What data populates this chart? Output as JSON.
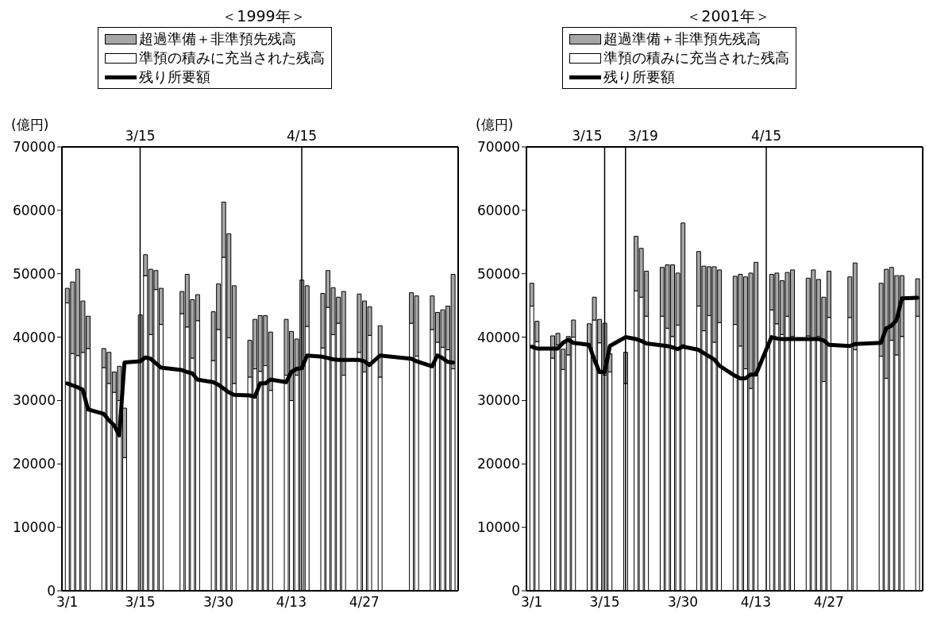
{
  "chart_data": [
    {
      "type": "bar",
      "title": "＜1999年＞",
      "ylabel": "(億円)",
      "stacked": true,
      "legend": "top",
      "xlim": [
        "--02-28",
        "--05-15"
      ],
      "x": [
        "--03-01",
        "--03-02",
        "--03-03",
        "--03-04",
        "--03-05",
        "--03-08",
        "--03-09",
        "--03-10",
        "--03-11",
        "--03-12",
        "--03-15",
        "--03-16",
        "--03-17",
        "--03-18",
        "--03-19",
        "--03-23",
        "--03-24",
        "--03-25",
        "--03-26",
        "--03-29",
        "--03-30",
        "--03-31",
        "--04-01",
        "--04-02",
        "--04-05",
        "--04-06",
        "--04-07",
        "--04-08",
        "--04-09",
        "--04-12",
        "--04-13",
        "--04-14",
        "--04-15",
        "--04-16",
        "--04-19",
        "--04-20",
        "--04-21",
        "--04-22",
        "--04-23",
        "--04-26",
        "--04-27",
        "--04-28",
        "--04-30",
        "--05-06",
        "--05-07",
        "--05-10",
        "--05-11",
        "--05-12",
        "--05-13",
        "--05-14"
      ],
      "series": [
        {
          "name": "準預の積みに充当された残高",
          "color": "#ffffff",
          "values": [
            45400,
            37400,
            37100,
            37600,
            38200,
            35200,
            32700,
            31300,
            30000,
            21000,
            36000,
            49700,
            40400,
            47500,
            42000,
            43700,
            41600,
            36700,
            42600,
            36300,
            41200,
            52600,
            39900,
            32700,
            33700,
            35000,
            34600,
            35500,
            31600,
            34000,
            30000,
            34000,
            35000,
            41700,
            38300,
            44700,
            40400,
            42200,
            34000,
            37600,
            34500,
            40300,
            33700,
            42200,
            37000,
            41200,
            39200,
            38400,
            38000,
            35000
          ]
        },
        {
          "name": "超過準備＋非準預先残高",
          "color": "#a6a6a6",
          "values": [
            2300,
            11300,
            13600,
            8100,
            5100,
            3000,
            4900,
            3200,
            5400,
            7800,
            7500,
            3300,
            10300,
            3000,
            5700,
            3500,
            8300,
            9200,
            4100,
            7700,
            7200,
            8700,
            16400,
            15400,
            5800,
            7800,
            8800,
            7900,
            9200,
            8800,
            10900,
            5700,
            14000,
            6400,
            8600,
            5800,
            7400,
            4100,
            13200,
            9200,
            11200,
            4500,
            8100,
            4800,
            9500,
            5300,
            4700,
            5900,
            6900,
            14900
          ]
        },
        {
          "name": "残り所要額",
          "type": "line",
          "color": "#000000",
          "values": [
            32700,
            32400,
            32100,
            31700,
            28600,
            27900,
            26900,
            26100,
            24500,
            36000,
            36200,
            36800,
            36600,
            35900,
            35200,
            34800,
            34500,
            34300,
            33300,
            32900,
            32500,
            31900,
            31300,
            30900,
            30800,
            30600,
            32700,
            32700,
            33300,
            32900,
            34500,
            35000,
            35100,
            37100,
            36900,
            36700,
            36500,
            36400,
            36400,
            36400,
            36200,
            35600,
            37100,
            36600,
            36200,
            35400,
            37100,
            36700,
            36100,
            36000
          ]
        }
      ],
      "ylim": [
        0,
        70000
      ],
      "yticks": [
        0,
        10000,
        20000,
        30000,
        40000,
        50000,
        60000,
        70000
      ],
      "xticks": [
        {
          "value": "--03-01",
          "label": "3/1"
        },
        {
          "value": "--03-15",
          "label": "3/15"
        },
        {
          "value": "--03-30",
          "label": "3/30"
        },
        {
          "value": "--04-13",
          "label": "4/13"
        },
        {
          "value": "--04-27",
          "label": "4/27"
        }
      ],
      "ref_lines": [
        {
          "axis": "x",
          "value": "--03-15",
          "label": "3/15"
        },
        {
          "axis": "x",
          "value": "--04-15",
          "label": "4/15"
        }
      ]
    },
    {
      "type": "bar",
      "title": "＜2001年＞",
      "ylabel": "(億円)",
      "stacked": true,
      "legend": "top",
      "xlim": [
        "--02-28",
        "--05-15"
      ],
      "x": [
        "--03-01",
        "--03-02",
        "--03-05",
        "--03-06",
        "--03-07",
        "--03-08",
        "--03-09",
        "--03-12",
        "--03-13",
        "--03-14",
        "--03-15",
        "--03-16",
        "--03-19",
        "--03-21",
        "--03-22",
        "--03-23",
        "--03-26",
        "--03-27",
        "--03-28",
        "--03-29",
        "--03-30",
        "--04-02",
        "--04-03",
        "--04-04",
        "--04-05",
        "--04-06",
        "--04-09",
        "--04-10",
        "--04-11",
        "--04-12",
        "--04-13",
        "--04-16",
        "--04-17",
        "--04-18",
        "--04-19",
        "--04-20",
        "--04-23",
        "--04-24",
        "--04-25",
        "--04-26",
        "--04-27",
        "--05-01",
        "--05-02",
        "--05-07",
        "--05-08",
        "--05-09",
        "--05-10",
        "--05-11",
        "--05-14"
      ],
      "series": [
        {
          "name": "準預の積みに充当された残高",
          "color": "#ffffff",
          "values": [
            44900,
            39300,
            36700,
            38800,
            34900,
            37200,
            40000,
            38800,
            42700,
            39100,
            34000,
            34500,
            32700,
            47300,
            46300,
            43300,
            43300,
            41400,
            40100,
            41900,
            38800,
            44900,
            41000,
            43400,
            39200,
            42300,
            42000,
            38600,
            35000,
            31900,
            33900,
            44300,
            42100,
            40400,
            43300,
            40100,
            40200,
            39700,
            40100,
            33000,
            43100,
            43100,
            38000,
            37000,
            33500,
            39500,
            37200,
            40100,
            43300
          ]
        },
        {
          "name": "超過準備＋非準預先残高",
          "color": "#a6a6a6",
          "values": [
            3600,
            3200,
            3500,
            1800,
            3200,
            2900,
            2700,
            3300,
            3600,
            3700,
            8200,
            2900,
            4900,
            8600,
            7700,
            7100,
            7700,
            10000,
            11300,
            8200,
            19200,
            8600,
            10200,
            7700,
            11900,
            8300,
            7600,
            11300,
            14500,
            18200,
            17900,
            5600,
            8000,
            8500,
            6900,
            10500,
            9100,
            10900,
            9000,
            13300,
            7300,
            6400,
            13700,
            11500,
            17200,
            11500,
            12500,
            9600,
            5900
          ]
        },
        {
          "name": "残り所要額",
          "type": "line",
          "color": "#000000",
          "values": [
            38500,
            38200,
            38200,
            38200,
            39100,
            39600,
            39100,
            38800,
            36500,
            34500,
            34500,
            38600,
            40000,
            39700,
            39400,
            39000,
            38700,
            38600,
            38400,
            38100,
            38500,
            38000,
            37500,
            37000,
            36500,
            35500,
            33900,
            33500,
            33500,
            34100,
            34100,
            40000,
            39800,
            39700,
            39700,
            39700,
            39700,
            39700,
            39700,
            39500,
            38800,
            38600,
            38900,
            39100,
            41400,
            41800,
            42700,
            46100,
            46200
          ]
        }
      ],
      "ylim": [
        0,
        70000
      ],
      "yticks": [
        0,
        10000,
        20000,
        30000,
        40000,
        50000,
        60000,
        70000
      ],
      "xticks": [
        {
          "value": "--03-01",
          "label": "3/1"
        },
        {
          "value": "--03-15",
          "label": "3/15"
        },
        {
          "value": "--03-30",
          "label": "3/30"
        },
        {
          "value": "--04-13",
          "label": "4/13"
        },
        {
          "value": "--04-27",
          "label": "4/27"
        }
      ],
      "ref_lines": [
        {
          "axis": "x",
          "value": "--03-15",
          "label": "3/15"
        },
        {
          "axis": "x",
          "value": "--03-19",
          "label": "3/19"
        },
        {
          "axis": "x",
          "value": "--04-15",
          "label": "4/15"
        }
      ]
    }
  ]
}
